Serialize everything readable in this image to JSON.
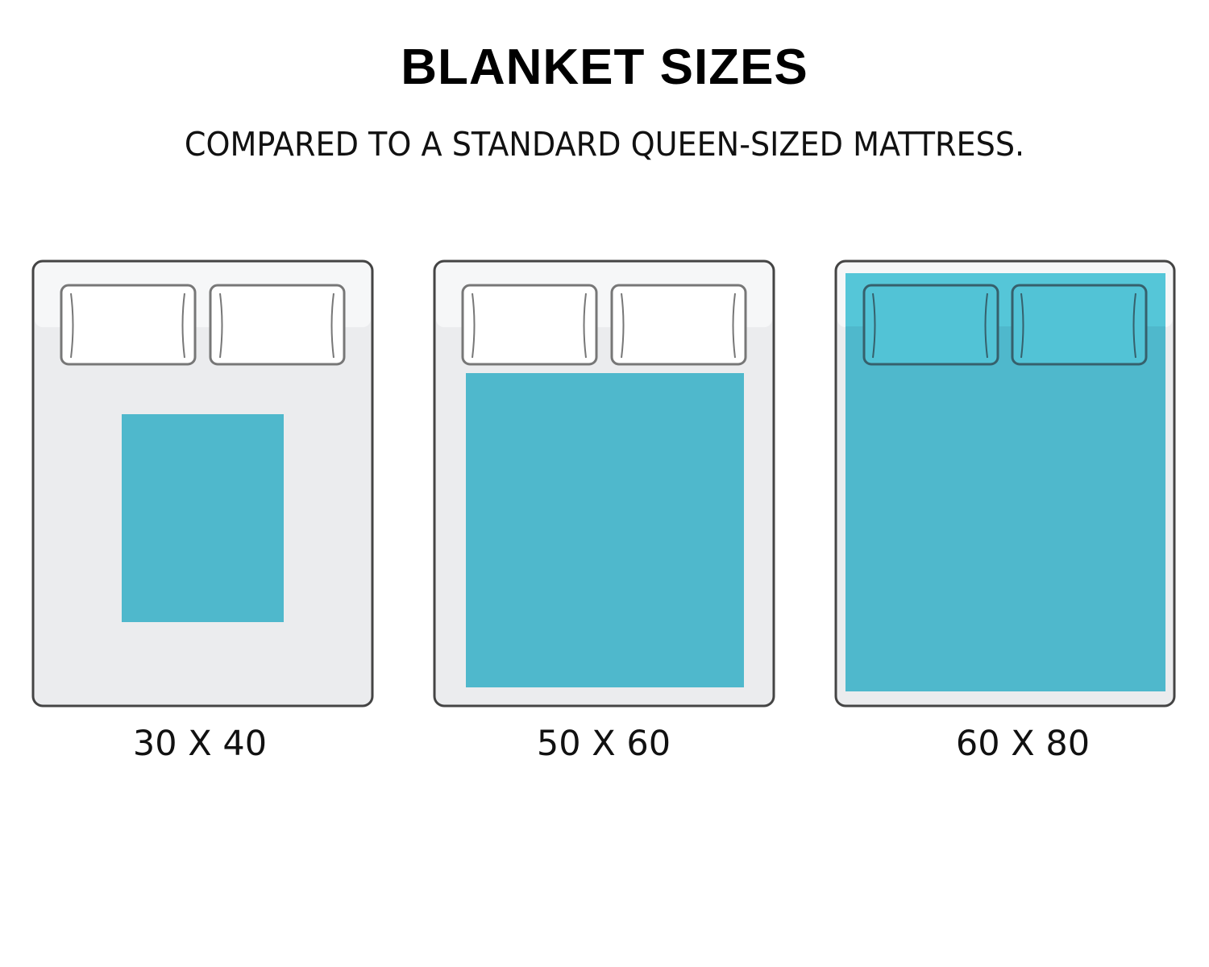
{
  "title": "BLANKET SIZES",
  "subtitle": "COMPARED TO A STANDARD QUEEN-SIZED MATTRESS.",
  "colors": {
    "blanket": "#4fb8cc",
    "blanket_top": "#55c6d8",
    "mattress": "#ebecee",
    "mattress_top": "#f6f7f8",
    "outline": "#555555",
    "pillow_outline": "#7a7a7a"
  },
  "beds": [
    {
      "label": "30 X 40"
    },
    {
      "label": "50 X 60"
    },
    {
      "label": "60 X 80"
    }
  ]
}
